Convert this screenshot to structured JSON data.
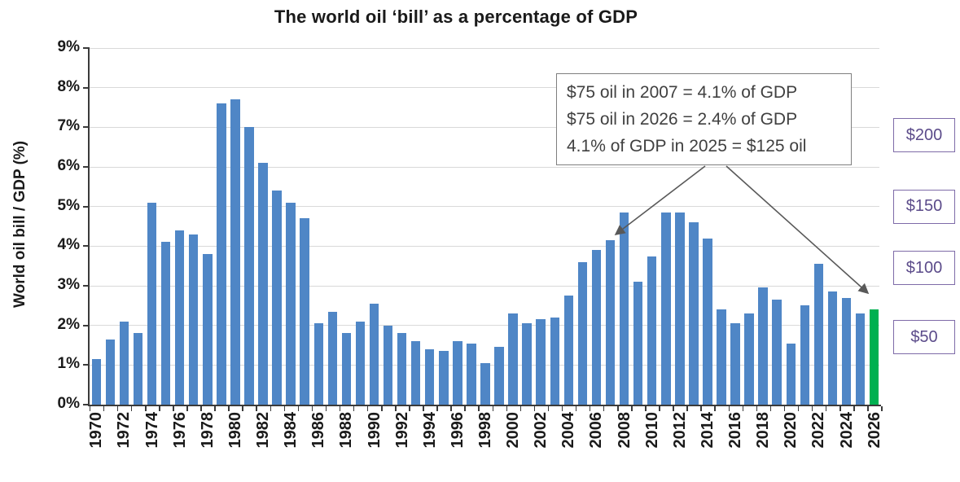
{
  "title": "The world oil ‘bill’ as a percentage of GDP",
  "chart_data": {
    "type": "bar",
    "title": "The world oil ‘bill’ as a percentage of GDP",
    "xlabel": "",
    "ylabel": "World oil bill / GDP (%)",
    "ylim": [
      0,
      9
    ],
    "grid": true,
    "yticks": [
      "0%",
      "1%",
      "2%",
      "3%",
      "4%",
      "5%",
      "6%",
      "7%",
      "8%",
      "9%"
    ],
    "xtick_label_step": 2,
    "categories": [
      1970,
      1971,
      1972,
      1973,
      1974,
      1975,
      1976,
      1977,
      1978,
      1979,
      1980,
      1981,
      1982,
      1983,
      1984,
      1985,
      1986,
      1987,
      1988,
      1989,
      1990,
      1991,
      1992,
      1993,
      1994,
      1995,
      1996,
      1997,
      1998,
      1999,
      2000,
      2001,
      2002,
      2003,
      2004,
      2005,
      2006,
      2007,
      2008,
      2009,
      2010,
      2011,
      2012,
      2013,
      2014,
      2015,
      2016,
      2017,
      2018,
      2019,
      2020,
      2021,
      2022,
      2023,
      2024,
      2025,
      2026
    ],
    "values": [
      1.15,
      1.65,
      2.1,
      1.8,
      5.1,
      4.1,
      4.4,
      4.3,
      3.8,
      7.6,
      7.7,
      7.0,
      6.1,
      5.4,
      5.1,
      4.7,
      2.05,
      2.35,
      1.8,
      2.1,
      2.55,
      2.0,
      1.8,
      1.6,
      1.4,
      1.35,
      1.6,
      1.55,
      1.05,
      1.45,
      2.3,
      2.05,
      2.15,
      2.2,
      2.75,
      3.6,
      3.9,
      4.15,
      4.85,
      3.1,
      3.75,
      4.85,
      4.85,
      4.6,
      4.2,
      2.4,
      2.05,
      2.3,
      2.95,
      2.65,
      1.55,
      2.5,
      3.55,
      2.85,
      2.7,
      2.3,
      2.4
    ],
    "highlight_year": 2026
  },
  "annotation": {
    "lines": [
      "$75 oil in 2007 = 4.1% of GDP",
      "$75 oil in 2026 = 2.4% of GDP",
      "4.1% of GDP in 2025 = $125 oil"
    ],
    "arrow_targets": [
      2007,
      2026
    ]
  },
  "price_labels": [
    {
      "text": "$200",
      "at_percent": 6.8
    },
    {
      "text": "$150",
      "at_percent": 5.0
    },
    {
      "text": "$100",
      "at_percent": 3.45
    },
    {
      "text": "$50",
      "at_percent": 1.7
    }
  ],
  "colors": {
    "bar": "#4f86c6",
    "bar_highlight": "#00b050",
    "grid": "#d9d9d9",
    "axis": "#3a3a3a",
    "text": "#1a1a1a",
    "annotation_border": "#7f7f7f",
    "annotation_text": "#404040",
    "arrow": "#595959",
    "price_border": "#7e6ba8",
    "price_text": "#5b4b8a"
  }
}
